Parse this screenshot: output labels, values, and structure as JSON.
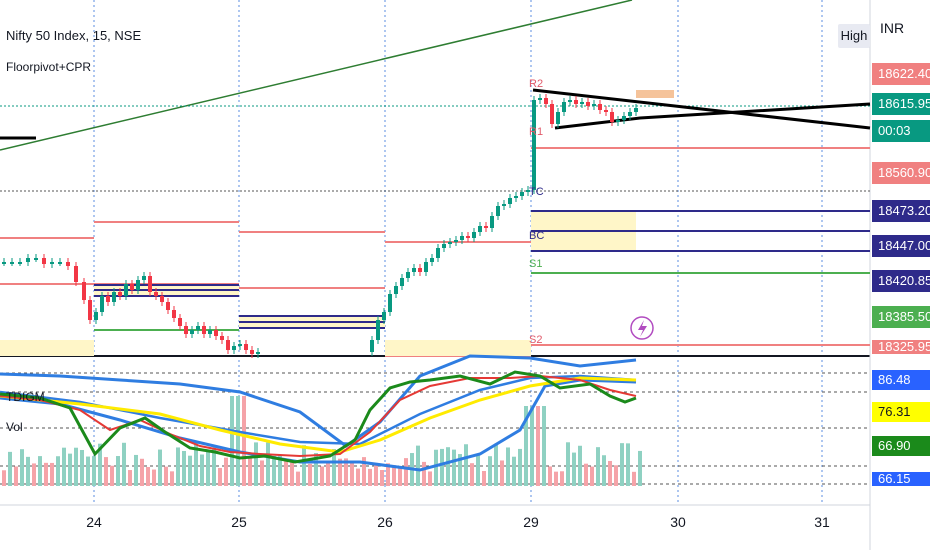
{
  "header": {
    "symbol_line": "Nifty 50 Index, 15, NSE",
    "indicator": "Floorpivot+CPR",
    "sub_indicator": "TDIGM",
    "vol_label": "Vol",
    "currency": "INR",
    "high_button": "High"
  },
  "price_scale": [
    {
      "text": "18622.40",
      "bg": "#f08080",
      "fg": "#ffffff"
    },
    {
      "text": "18615.95",
      "bg": "#089981",
      "fg": "#ffffff"
    },
    {
      "text": "00:03",
      "bg": "#089981",
      "fg": "#ffffff"
    },
    {
      "text": "18560.90",
      "bg": "#f08080",
      "fg": "#ffffff"
    },
    {
      "text": "18473.20",
      "bg": "#2e2a8a",
      "fg": "#ffffff"
    },
    {
      "text": "18447.00",
      "bg": "#2e2a8a",
      "fg": "#ffffff"
    },
    {
      "text": "18420.85",
      "bg": "#2e2a8a",
      "fg": "#ffffff"
    },
    {
      "text": "18385.50",
      "bg": "#4caf50",
      "fg": "#ffffff"
    },
    {
      "text": "18325.95",
      "bg": "#f08080",
      "fg": "#ffffff"
    }
  ],
  "indicator_scale": [
    {
      "text": "86.48",
      "bg": "#2962ff",
      "fg": "#ffffff"
    },
    {
      "text": "76.31",
      "bg": "#ffff00",
      "fg": "#131722"
    },
    {
      "text": "66.90",
      "bg": "#1b8a1b",
      "fg": "#ffffff"
    },
    {
      "text": "66.15",
      "bg": "#2962ff",
      "fg": "#ffffff"
    }
  ],
  "x_ticks": [
    "24",
    "25",
    "26",
    "29",
    "30",
    "31"
  ],
  "level_labels": [
    "R2",
    "R1",
    "TC",
    "BC",
    "S1",
    "S2"
  ],
  "colors": {
    "up": "#089981",
    "down": "#f23645",
    "resistance": "#f08080",
    "cpr": "#2e2a8a",
    "support": "#4caf50",
    "trend": "#2e7d32"
  },
  "chart_data": {
    "type": "candlestick",
    "title": "Nifty 50 Index, 15, NSE",
    "y_unit": "INR",
    "x_categories": [
      "24",
      "25",
      "26",
      "29",
      "30",
      "31"
    ],
    "price_levels": {
      "R2": 18622.4,
      "last": 18615.95,
      "R1": 18560.9,
      "TC": 18473.2,
      "P": 18447.0,
      "BC": 18420.85,
      "S1": 18385.5,
      "S2": 18325.95
    },
    "indicator_levels": {
      "upper_band": 86.48,
      "signal": 76.31,
      "rsi": 66.9,
      "lower_band": 66.15
    },
    "grid": true
  }
}
